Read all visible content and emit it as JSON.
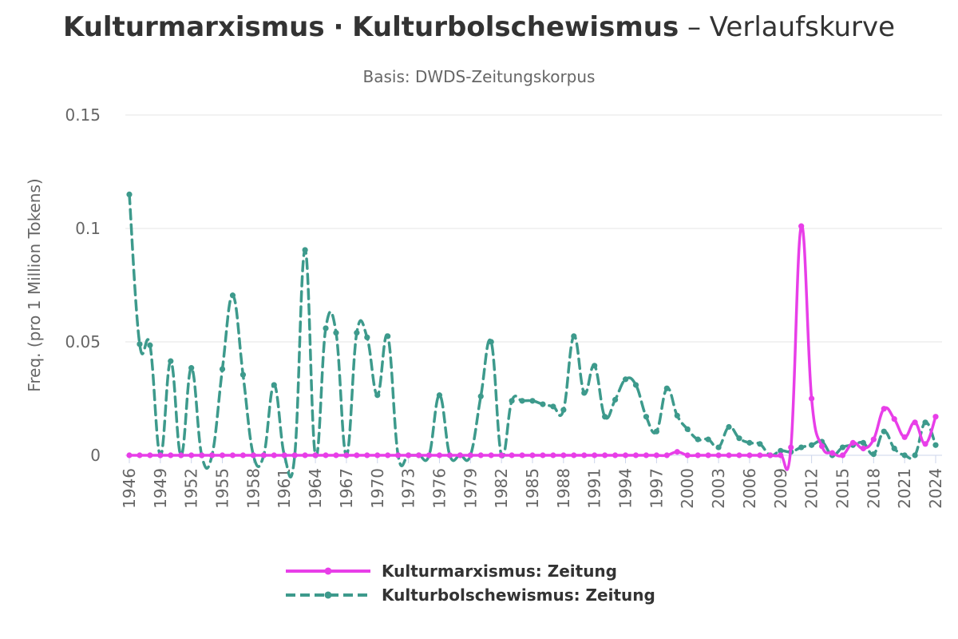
{
  "title": {
    "part1": "Kulturmarxismus",
    "separator": "·",
    "part2": "Kulturbolschewismus",
    "suffix": "– Verlaufskurve"
  },
  "subtitle": "Basis: DWDS-Zeitungskorpus",
  "chart_data": {
    "type": "line",
    "ylabel": "Freq. (pro 1 Million Tokens)",
    "ylim": [
      0,
      0.15
    ],
    "yticks": [
      0,
      0.05,
      0.1,
      0.15
    ],
    "ytick_labels": [
      "0",
      "0.05",
      "0.1",
      "0.15"
    ],
    "xlim": [
      1946,
      2024
    ],
    "xticks": [
      1946,
      1949,
      1952,
      1955,
      1958,
      1961,
      1964,
      1967,
      1970,
      1973,
      1976,
      1979,
      1982,
      1985,
      1988,
      1991,
      1994,
      1997,
      2000,
      2003,
      2006,
      2009,
      2012,
      2015,
      2018,
      2021,
      2024
    ],
    "grid": true,
    "legend_position": "bottom",
    "x": [
      1946,
      1947,
      1948,
      1949,
      1950,
      1951,
      1952,
      1953,
      1954,
      1955,
      1956,
      1957,
      1958,
      1959,
      1960,
      1961,
      1962,
      1963,
      1964,
      1965,
      1966,
      1967,
      1968,
      1969,
      1970,
      1971,
      1972,
      1973,
      1974,
      1975,
      1976,
      1977,
      1978,
      1979,
      1980,
      1981,
      1982,
      1983,
      1984,
      1985,
      1986,
      1987,
      1988,
      1989,
      1990,
      1991,
      1992,
      1993,
      1994,
      1995,
      1996,
      1997,
      1998,
      1999,
      2000,
      2001,
      2002,
      2003,
      2004,
      2005,
      2006,
      2007,
      2008,
      2009,
      2010,
      2011,
      2012,
      2013,
      2014,
      2015,
      2016,
      2017,
      2018,
      2019,
      2020,
      2021,
      2022,
      2023,
      2024
    ],
    "series": [
      {
        "name": "Kulturmarxismus: Zeitung",
        "color": "#e83ee8",
        "dash": "solid",
        "values": [
          0,
          0,
          0,
          0,
          0,
          0,
          0,
          0,
          0,
          0,
          0,
          0,
          0,
          0,
          0,
          0,
          0,
          0,
          0,
          0,
          0,
          0,
          0,
          0,
          0,
          0,
          0,
          0,
          0,
          0,
          0,
          0,
          0,
          0,
          0,
          0,
          0,
          0,
          0,
          0,
          0,
          0,
          0,
          0,
          0,
          0,
          0,
          0,
          0,
          0,
          0,
          0,
          0,
          0.0015,
          0,
          0,
          0,
          0,
          0,
          0,
          0,
          0,
          0,
          0,
          0.0035,
          0.101,
          0.025,
          0.004,
          0.001,
          0,
          0.0055,
          0.003,
          0.007,
          0.0205,
          0.016,
          0.008,
          0.0145,
          0.005,
          0.017
        ]
      },
      {
        "name": "Kulturbolschewismus: Zeitung",
        "color": "#3d9a8c",
        "dash": "dashed",
        "values": [
          0.115,
          0.049,
          0.0485,
          0,
          0.0415,
          0,
          0.0385,
          0,
          0,
          0.038,
          0.0705,
          0.0355,
          0,
          0,
          0.031,
          0,
          0,
          0.0905,
          0,
          0.056,
          0.054,
          0,
          0.054,
          0.052,
          0.0265,
          0.0525,
          0,
          0,
          0,
          0,
          0.0265,
          0,
          0,
          0,
          0.026,
          0.05,
          0,
          0.024,
          0.024,
          0.024,
          0.0225,
          0.0215,
          0.02,
          0.0525,
          0.0275,
          0.0395,
          0.017,
          0.0245,
          0.0335,
          0.031,
          0.017,
          0.0105,
          0.0295,
          0.0175,
          0.0115,
          0.007,
          0.007,
          0.0035,
          0.0125,
          0.0075,
          0.0055,
          0.005,
          0,
          0.002,
          0.0015,
          0.0035,
          0.0045,
          0.006,
          0,
          0.0035,
          0.0045,
          0.0055,
          0.0005,
          0.0105,
          0.003,
          0,
          0,
          0.0145,
          0.0045
        ]
      }
    ]
  }
}
